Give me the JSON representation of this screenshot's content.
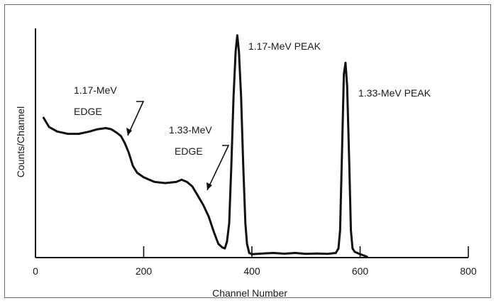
{
  "chart_data": {
    "type": "line",
    "xlabel": "Channel Number",
    "ylabel": "Counts/Channel",
    "xlim": [
      0,
      800
    ],
    "ylim": [
      0,
      100
    ],
    "x_ticks": [
      0,
      200,
      400,
      600,
      800
    ],
    "x_tick_labels": [
      "0",
      "200",
      "400",
      "600",
      "800"
    ],
    "grid": false,
    "series": [
      {
        "points": [
          [
            15,
            61
          ],
          [
            25,
            57
          ],
          [
            40,
            55
          ],
          [
            60,
            54
          ],
          [
            80,
            54
          ],
          [
            100,
            55
          ],
          [
            115,
            56
          ],
          [
            130,
            56.5
          ],
          [
            140,
            56
          ],
          [
            150,
            54.5
          ],
          [
            158,
            53
          ],
          [
            165,
            50
          ],
          [
            172,
            46
          ],
          [
            180,
            40
          ],
          [
            188,
            37
          ],
          [
            200,
            35
          ],
          [
            220,
            33
          ],
          [
            240,
            32.5
          ],
          [
            260,
            33
          ],
          [
            270,
            34
          ],
          [
            280,
            33
          ],
          [
            290,
            31
          ],
          [
            300,
            27
          ],
          [
            310,
            23
          ],
          [
            320,
            18
          ],
          [
            330,
            11
          ],
          [
            338,
            6
          ],
          [
            345,
            4.5
          ],
          [
            350,
            4
          ],
          [
            354,
            7
          ],
          [
            358,
            15
          ],
          [
            362,
            40
          ],
          [
            366,
            70
          ],
          [
            370,
            90
          ],
          [
            373,
            97
          ],
          [
            376,
            90
          ],
          [
            380,
            70
          ],
          [
            384,
            40
          ],
          [
            388,
            15
          ],
          [
            391,
            6
          ],
          [
            395,
            2
          ],
          [
            400,
            1.5
          ],
          [
            420,
            1.8
          ],
          [
            440,
            2
          ],
          [
            460,
            1.7
          ],
          [
            480,
            2
          ],
          [
            500,
            1.6
          ],
          [
            520,
            1.8
          ],
          [
            540,
            1.6
          ],
          [
            555,
            2
          ],
          [
            560,
            4
          ],
          [
            563,
            12
          ],
          [
            567,
            50
          ],
          [
            570,
            80
          ],
          [
            573,
            85
          ],
          [
            576,
            75
          ],
          [
            580,
            40
          ],
          [
            583,
            12
          ],
          [
            586,
            4
          ],
          [
            590,
            2.5
          ],
          [
            600,
            1.5
          ],
          [
            608,
            0.8
          ],
          [
            613,
            0.3
          ]
        ]
      }
    ],
    "annotations": [
      {
        "lines": [
          "1.17-MeV",
          "EDGE"
        ],
        "target": [
          158,
          53
        ]
      },
      {
        "lines": [
          "1.33-MeV",
          "EDGE"
        ],
        "target": [
          292,
          30
        ]
      },
      {
        "lines": [
          "1.17-MeV PEAK"
        ]
      },
      {
        "lines": [
          "1.33-MeV PEAK"
        ]
      }
    ]
  }
}
